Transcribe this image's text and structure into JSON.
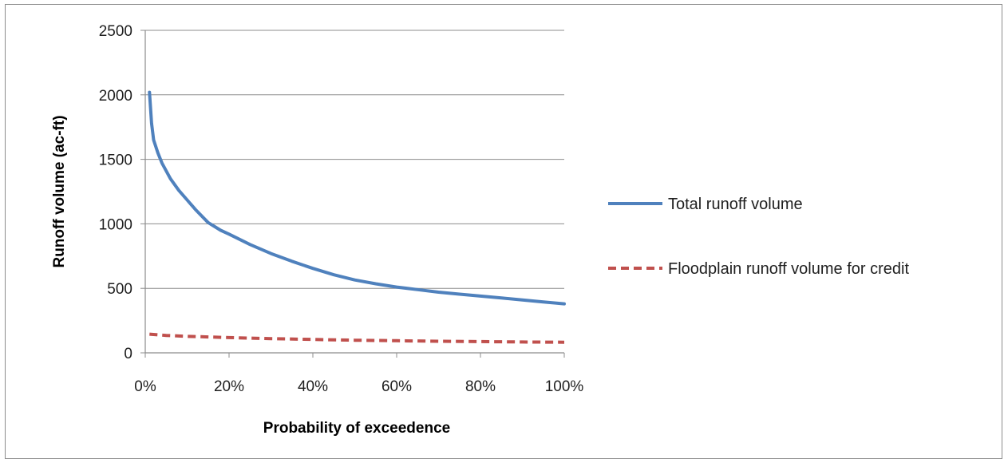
{
  "chart_data": {
    "type": "line",
    "title": "",
    "xlabel": "Probability of exceedence",
    "ylabel": "Runoff volume (ac-ft)",
    "xlim": [
      0,
      100
    ],
    "ylim": [
      0,
      2500
    ],
    "x_ticks": [
      0,
      20,
      40,
      60,
      80,
      100
    ],
    "x_tick_labels": [
      "0%",
      "20%",
      "40%",
      "60%",
      "80%",
      "100%"
    ],
    "y_ticks": [
      0,
      500,
      1000,
      1500,
      2000,
      2500
    ],
    "y_tick_labels": [
      "0",
      "500",
      "1000",
      "1500",
      "2000",
      "2500"
    ],
    "grid": "horizontal",
    "legend_position": "right",
    "series": [
      {
        "name": "Total runoff volume",
        "color": "#4f81bd",
        "style": "solid",
        "x": [
          1,
          1.5,
          2,
          3,
          4,
          6,
          8,
          10,
          12,
          15,
          18,
          20,
          25,
          30,
          35,
          40,
          45,
          50,
          55,
          60,
          65,
          70,
          75,
          80,
          85,
          90,
          95,
          100
        ],
        "y": [
          2020,
          1780,
          1650,
          1550,
          1470,
          1350,
          1260,
          1185,
          1110,
          1010,
          950,
          920,
          840,
          770,
          710,
          655,
          605,
          565,
          535,
          510,
          490,
          470,
          455,
          440,
          425,
          410,
          395,
          380
        ]
      },
      {
        "name": "Floodplain runoff volume for credit",
        "color": "#c0504d",
        "style": "dashed",
        "x": [
          1,
          5,
          10,
          20,
          30,
          40,
          50,
          60,
          70,
          80,
          90,
          100
        ],
        "y": [
          145,
          135,
          128,
          118,
          110,
          104,
          98,
          94,
          90,
          87,
          84,
          82
        ]
      }
    ]
  }
}
